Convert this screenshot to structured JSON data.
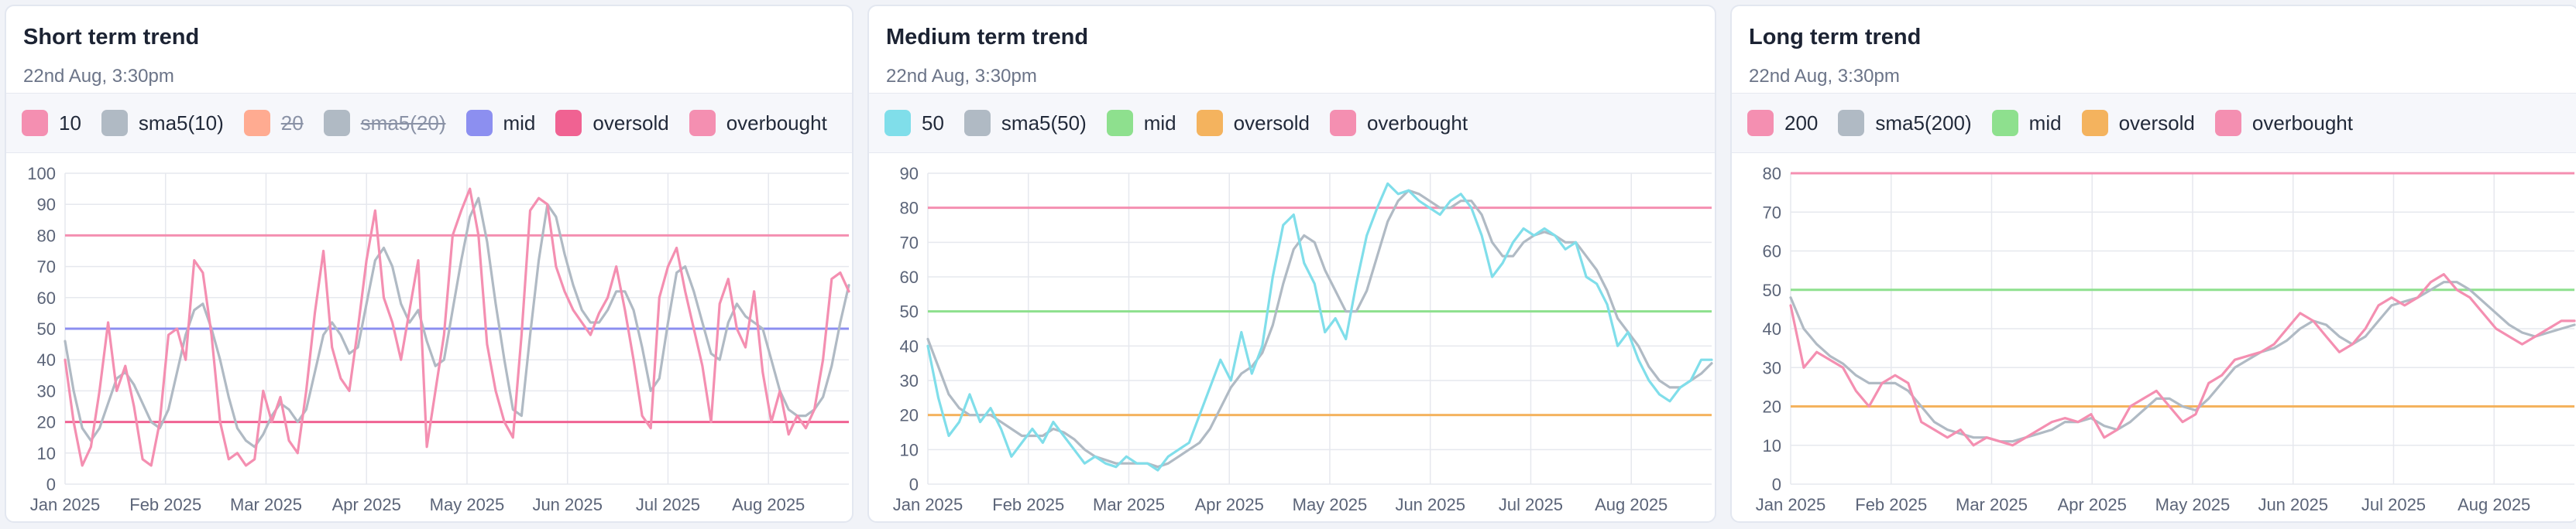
{
  "charts": [
    {
      "title": "Short term trend",
      "subtitle": "22nd Aug, 3:30pm",
      "legend": [
        {
          "label": "10",
          "color": "#f48fb1",
          "hidden": false
        },
        {
          "label": "sma5(10)",
          "color": "#b0bac4",
          "hidden": false
        },
        {
          "label": "20",
          "color": "#ffab91",
          "hidden": true
        },
        {
          "label": "sma5(20)",
          "color": "#b0bac4",
          "hidden": true
        },
        {
          "label": "mid",
          "color": "#8c8ff0",
          "hidden": false
        },
        {
          "label": "oversold",
          "color": "#f06292",
          "hidden": false
        },
        {
          "label": "overbought",
          "color": "#f48fb1",
          "hidden": false
        }
      ],
      "chart_data": {
        "type": "line",
        "ylim": [
          0,
          100
        ],
        "yticks": [
          0,
          10,
          20,
          30,
          40,
          50,
          60,
          70,
          80,
          90,
          100
        ],
        "xticks": [
          "Jan 2025",
          "Feb 2025",
          "Mar 2025",
          "Apr 2025",
          "May 2025",
          "Jun 2025",
          "Jul 2025",
          "Aug 2025"
        ],
        "reference_lines": [
          {
            "name": "overbought",
            "value": 80,
            "color": "#f48fb1"
          },
          {
            "name": "mid",
            "value": 50,
            "color": "#8c8ff0"
          },
          {
            "name": "oversold",
            "value": 20,
            "color": "#f06292"
          }
        ],
        "series": [
          {
            "name": "10",
            "color": "#f48fb1",
            "values": [
              40,
              20,
              6,
              12,
              30,
              52,
              30,
              38,
              25,
              8,
              6,
              20,
              48,
              50,
              40,
              72,
              68,
              48,
              20,
              8,
              10,
              6,
              8,
              30,
              20,
              28,
              14,
              10,
              30,
              55,
              75,
              44,
              34,
              30,
              50,
              72,
              88,
              60,
              52,
              40,
              56,
              72,
              12,
              30,
              48,
              80,
              88,
              95,
              80,
              45,
              30,
              20,
              15,
              48,
              88,
              92,
              90,
              70,
              62,
              56,
              52,
              48,
              55,
              60,
              70,
              56,
              40,
              22,
              18,
              60,
              70,
              76,
              62,
              50,
              38,
              20,
              58,
              66,
              50,
              44,
              62,
              36,
              20,
              30,
              16,
              22,
              18,
              24,
              40,
              66,
              68,
              62
            ]
          },
          {
            "name": "sma5(10)",
            "color": "#b0bac4",
            "values": [
              46,
              30,
              18,
              14,
              18,
              26,
              34,
              36,
              32,
              26,
              20,
              18,
              24,
              36,
              48,
              56,
              58,
              50,
              40,
              28,
              18,
              14,
              12,
              16,
              22,
              26,
              24,
              20,
              24,
              36,
              48,
              52,
              48,
              42,
              44,
              58,
              72,
              76,
              70,
              58,
              52,
              56,
              46,
              38,
              40,
              56,
              72,
              86,
              92,
              78,
              58,
              40,
              24,
              22,
              48,
              72,
              90,
              86,
              74,
              64,
              56,
              52,
              52,
              56,
              62,
              62,
              56,
              44,
              30,
              34,
              52,
              68,
              70,
              62,
              52,
              42,
              40,
              52,
              58,
              54,
              52,
              50,
              40,
              30,
              24,
              22,
              22,
              24,
              28,
              38,
              52,
              64
            ]
          }
        ]
      }
    },
    {
      "title": "Medium term trend",
      "subtitle": "22nd Aug, 3:30pm",
      "legend": [
        {
          "label": "50",
          "color": "#80deea",
          "hidden": false
        },
        {
          "label": "sma5(50)",
          "color": "#b0bac4",
          "hidden": false
        },
        {
          "label": "mid",
          "color": "#8ee08e",
          "hidden": false
        },
        {
          "label": "oversold",
          "color": "#f4b35e",
          "hidden": false
        },
        {
          "label": "overbought",
          "color": "#f48fb1",
          "hidden": false
        }
      ],
      "chart_data": {
        "type": "line",
        "ylim": [
          0,
          90
        ],
        "yticks": [
          0,
          10,
          20,
          30,
          40,
          50,
          60,
          70,
          80,
          90
        ],
        "xticks": [
          "Jan 2025",
          "Feb 2025",
          "Mar 2025",
          "Apr 2025",
          "May 2025",
          "Jun 2025",
          "Jul 2025",
          "Aug 2025"
        ],
        "reference_lines": [
          {
            "name": "overbought",
            "value": 80,
            "color": "#f48fb1"
          },
          {
            "name": "mid",
            "value": 50,
            "color": "#8ee08e"
          },
          {
            "name": "oversold",
            "value": 20,
            "color": "#f4b35e"
          }
        ],
        "series": [
          {
            "name": "50",
            "color": "#80deea",
            "values": [
              40,
              25,
              14,
              18,
              26,
              18,
              22,
              16,
              8,
              12,
              16,
              12,
              18,
              14,
              10,
              6,
              8,
              6,
              5,
              8,
              6,
              6,
              4,
              8,
              10,
              12,
              20,
              28,
              36,
              30,
              44,
              32,
              40,
              60,
              75,
              78,
              64,
              58,
              44,
              48,
              42,
              58,
              72,
              80,
              87,
              84,
              85,
              82,
              80,
              78,
              82,
              84,
              80,
              72,
              60,
              64,
              70,
              74,
              72,
              74,
              72,
              68,
              70,
              60,
              58,
              52,
              40,
              44,
              36,
              30,
              26,
              24,
              28,
              30,
              36,
              36
            ]
          },
          {
            "name": "sma5(50)",
            "color": "#b0bac4",
            "values": [
              42,
              34,
              26,
              22,
              20,
              20,
              20,
              18,
              16,
              14,
              14,
              14,
              16,
              15,
              13,
              10,
              8,
              7,
              6,
              6,
              6,
              6,
              5,
              6,
              8,
              10,
              12,
              16,
              22,
              28,
              32,
              34,
              38,
              46,
              58,
              68,
              72,
              70,
              62,
              56,
              50,
              50,
              56,
              66,
              76,
              82,
              85,
              84,
              82,
              80,
              80,
              82,
              82,
              78,
              70,
              66,
              66,
              70,
              72,
              73,
              72,
              70,
              70,
              66,
              62,
              56,
              48,
              44,
              40,
              34,
              30,
              28,
              28,
              30,
              32,
              35
            ]
          }
        ]
      }
    },
    {
      "title": "Long term trend",
      "subtitle": "22nd Aug, 3:30pm",
      "legend": [
        {
          "label": "200",
          "color": "#f48fb1",
          "hidden": false
        },
        {
          "label": "sma5(200)",
          "color": "#b0bac4",
          "hidden": false
        },
        {
          "label": "mid",
          "color": "#8ee08e",
          "hidden": false
        },
        {
          "label": "oversold",
          "color": "#f4b35e",
          "hidden": false
        },
        {
          "label": "overbought",
          "color": "#f48fb1",
          "hidden": false
        }
      ],
      "chart_data": {
        "type": "line",
        "ylim": [
          0,
          80
        ],
        "yticks": [
          0,
          10,
          20,
          30,
          40,
          50,
          60,
          70,
          80
        ],
        "xticks": [
          "Jan 2025",
          "Feb 2025",
          "Mar 2025",
          "Apr 2025",
          "May 2025",
          "Jun 2025",
          "Jul 2025",
          "Aug 2025"
        ],
        "reference_lines": [
          {
            "name": "overbought",
            "value": 80,
            "color": "#f48fb1"
          },
          {
            "name": "mid",
            "value": 50,
            "color": "#8ee08e"
          },
          {
            "name": "oversold",
            "value": 20,
            "color": "#f4b35e"
          }
        ],
        "series": [
          {
            "name": "200",
            "color": "#f48fb1",
            "values": [
              46,
              30,
              34,
              32,
              30,
              24,
              20,
              26,
              28,
              26,
              16,
              14,
              12,
              14,
              10,
              12,
              11,
              10,
              12,
              14,
              16,
              17,
              16,
              18,
              12,
              14,
              20,
              22,
              24,
              20,
              16,
              18,
              26,
              28,
              32,
              33,
              34,
              36,
              40,
              44,
              42,
              38,
              34,
              36,
              40,
              46,
              48,
              46,
              48,
              52,
              54,
              50,
              48,
              44,
              40,
              38,
              36,
              38,
              40,
              42,
              42
            ]
          },
          {
            "name": "sma5(200)",
            "color": "#b0bac4",
            "values": [
              48,
              40,
              36,
              33,
              31,
              28,
              26,
              26,
              26,
              24,
              20,
              16,
              14,
              13,
              12,
              12,
              11,
              11,
              12,
              13,
              14,
              16,
              16,
              17,
              15,
              14,
              16,
              19,
              22,
              22,
              20,
              19,
              22,
              26,
              30,
              32,
              34,
              35,
              37,
              40,
              42,
              41,
              38,
              36,
              38,
              42,
              46,
              47,
              48,
              50,
              52,
              52,
              50,
              47,
              44,
              41,
              39,
              38,
              39,
              40,
              41
            ]
          }
        ]
      }
    }
  ]
}
